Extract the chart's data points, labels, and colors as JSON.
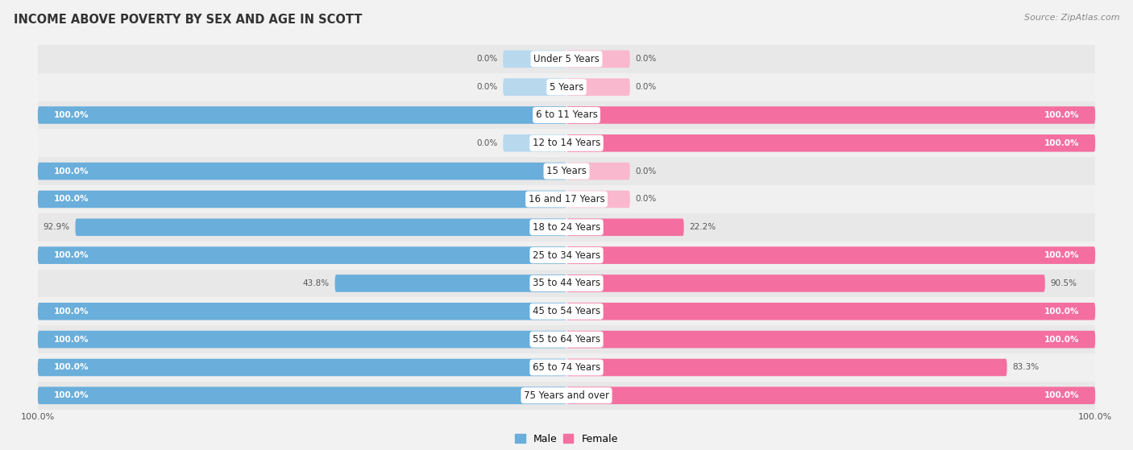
{
  "title": "INCOME ABOVE POVERTY BY SEX AND AGE IN SCOTT",
  "source": "Source: ZipAtlas.com",
  "categories": [
    "Under 5 Years",
    "5 Years",
    "6 to 11 Years",
    "12 to 14 Years",
    "15 Years",
    "16 and 17 Years",
    "18 to 24 Years",
    "25 to 34 Years",
    "35 to 44 Years",
    "45 to 54 Years",
    "55 to 64 Years",
    "65 to 74 Years",
    "75 Years and over"
  ],
  "male": [
    0.0,
    0.0,
    100.0,
    0.0,
    100.0,
    100.0,
    92.9,
    100.0,
    43.8,
    100.0,
    100.0,
    100.0,
    100.0
  ],
  "female": [
    0.0,
    0.0,
    100.0,
    100.0,
    0.0,
    0.0,
    22.2,
    100.0,
    90.5,
    100.0,
    100.0,
    83.3,
    100.0
  ],
  "male_color": "#6aaedb",
  "female_color": "#f46fa0",
  "male_light_color": "#b8d8ee",
  "female_light_color": "#f9b8ce",
  "bar_height": 0.62,
  "bg_color": "#f2f2f2",
  "row_colors": [
    "#e8e8e8",
    "#f0f0f0"
  ]
}
